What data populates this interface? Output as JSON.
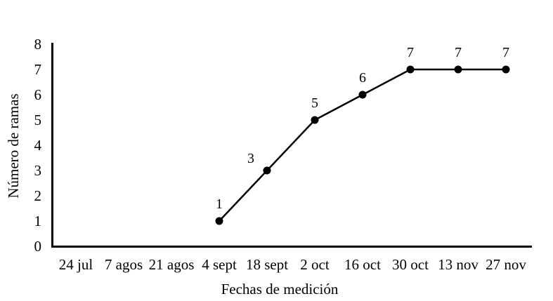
{
  "chart_data": {
    "type": "line",
    "title": "",
    "xlabel": "Fechas de medición",
    "ylabel": "Número de ramas",
    "categories": [
      "24 jul",
      "7 agos",
      "21 agos",
      "4 sept",
      "18 sept",
      "2 oct",
      "16 oct",
      "30 oct",
      "13 nov",
      "27 nov"
    ],
    "series": [
      {
        "name": "Número de ramas",
        "values": [
          null,
          null,
          null,
          1,
          3,
          5,
          6,
          7,
          7,
          7
        ]
      }
    ],
    "point_labels": [
      null,
      null,
      null,
      "1",
      "3",
      "5",
      "6",
      "7",
      "7",
      "7"
    ],
    "ylim": [
      0,
      8
    ],
    "yticks": [
      0,
      1,
      2,
      3,
      4,
      5,
      6,
      7,
      8
    ],
    "grid": false,
    "legend_position": "none",
    "line_color": "#000000",
    "marker": "filled-circle",
    "axis_color": "#000000",
    "background": "#ffffff"
  }
}
